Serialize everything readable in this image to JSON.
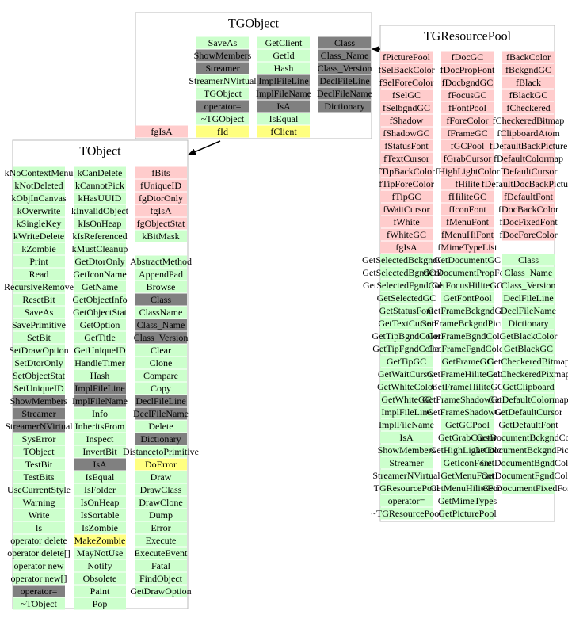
{
  "classes": [
    {
      "name": "TGObject",
      "columns": [
        [
          null,
          null,
          null,
          null,
          null,
          null,
          null,
          [
            "fgIsA",
            "pink"
          ]
        ],
        [
          [
            "SaveAs",
            "green"
          ],
          [
            "ShowMembers",
            "gray"
          ],
          [
            "Streamer",
            "gray"
          ],
          [
            "StreamerNVirtual",
            "green"
          ],
          [
            "TGObject",
            "green"
          ],
          [
            "operator=",
            "gray"
          ],
          [
            "~TGObject",
            "green"
          ],
          [
            "fId",
            "yellow"
          ]
        ],
        [
          [
            "GetClient",
            "green"
          ],
          [
            "GetId",
            "green"
          ],
          [
            "Hash",
            "green"
          ],
          [
            "ImplFileLine",
            "gray"
          ],
          [
            "ImplFileName",
            "gray"
          ],
          [
            "IsA",
            "gray"
          ],
          [
            "IsEqual",
            "green"
          ],
          [
            "fClient",
            "yellow"
          ]
        ],
        [
          [
            "Class",
            "gray"
          ],
          [
            "Class_Name",
            "gray"
          ],
          [
            "Class_Version",
            "gray"
          ],
          [
            "DeclFileLine",
            "gray"
          ],
          [
            "DeclFileName",
            "gray"
          ],
          [
            "Dictionary",
            "gray"
          ]
        ]
      ]
    },
    {
      "name": "TObject",
      "columns": [
        [
          [
            "kNoContextMenu",
            "green"
          ],
          [
            "kNotDeleted",
            "green"
          ],
          [
            "kObjInCanvas",
            "green"
          ],
          [
            "kOverwrite",
            "green"
          ],
          [
            "kSingleKey",
            "green"
          ],
          [
            "kWriteDelete",
            "green"
          ],
          [
            "kZombie",
            "green"
          ],
          [
            "Print",
            "green"
          ],
          [
            "Read",
            "green"
          ],
          [
            "RecursiveRemove",
            "green"
          ],
          [
            "ResetBit",
            "green"
          ],
          [
            "SaveAs",
            "green"
          ],
          [
            "SavePrimitive",
            "green"
          ],
          [
            "SetBit",
            "green"
          ],
          [
            "SetDrawOption",
            "green"
          ],
          [
            "SetDtorOnly",
            "green"
          ],
          [
            "SetObjectStat",
            "green"
          ],
          [
            "SetUniqueID",
            "green"
          ],
          [
            "ShowMembers",
            "gray"
          ],
          [
            "Streamer",
            "gray"
          ],
          [
            "StreamerNVirtual",
            "gray"
          ],
          [
            "SysError",
            "green"
          ],
          [
            "TObject",
            "green"
          ],
          [
            "TestBit",
            "green"
          ],
          [
            "TestBits",
            "green"
          ],
          [
            "UseCurrentStyle",
            "green"
          ],
          [
            "Warning",
            "green"
          ],
          [
            "Write",
            "green"
          ],
          [
            "ls",
            "green"
          ],
          [
            "operator delete",
            "green"
          ],
          [
            "operator delete[]",
            "green"
          ],
          [
            "operator new",
            "green"
          ],
          [
            "operator new[]",
            "green"
          ],
          [
            "operator=",
            "gray"
          ],
          [
            "~TObject",
            "green"
          ]
        ],
        [
          [
            "kCanDelete",
            "green"
          ],
          [
            "kCannotPick",
            "green"
          ],
          [
            "kHasUUID",
            "green"
          ],
          [
            "kInvalidObject",
            "green"
          ],
          [
            "kIsOnHeap",
            "green"
          ],
          [
            "kIsReferenced",
            "green"
          ],
          [
            "kMustCleanup",
            "green"
          ],
          [
            "GetDtorOnly",
            "green"
          ],
          [
            "GetIconName",
            "green"
          ],
          [
            "GetName",
            "green"
          ],
          [
            "GetObjectInfo",
            "green"
          ],
          [
            "GetObjectStat",
            "green"
          ],
          [
            "GetOption",
            "green"
          ],
          [
            "GetTitle",
            "green"
          ],
          [
            "GetUniqueID",
            "green"
          ],
          [
            "HandleTimer",
            "green"
          ],
          [
            "Hash",
            "green"
          ],
          [
            "ImplFileLine",
            "gray"
          ],
          [
            "ImplFileName",
            "gray"
          ],
          [
            "Info",
            "green"
          ],
          [
            "InheritsFrom",
            "green"
          ],
          [
            "Inspect",
            "green"
          ],
          [
            "InvertBit",
            "green"
          ],
          [
            "IsA",
            "gray"
          ],
          [
            "IsEqual",
            "green"
          ],
          [
            "IsFolder",
            "green"
          ],
          [
            "IsOnHeap",
            "green"
          ],
          [
            "IsSortable",
            "green"
          ],
          [
            "IsZombie",
            "green"
          ],
          [
            "MakeZombie",
            "yellow"
          ],
          [
            "MayNotUse",
            "green"
          ],
          [
            "Notify",
            "green"
          ],
          [
            "Obsolete",
            "green"
          ],
          [
            "Paint",
            "green"
          ],
          [
            "Pop",
            "green"
          ]
        ],
        [
          [
            "fBits",
            "pink"
          ],
          [
            "fUniqueID",
            "pink"
          ],
          [
            "fgDtorOnly",
            "pink"
          ],
          [
            "fgIsA",
            "pink"
          ],
          [
            "fgObjectStat",
            "pink"
          ],
          [
            "kBitMask",
            "green"
          ],
          null,
          [
            "AbstractMethod",
            "green"
          ],
          [
            "AppendPad",
            "green"
          ],
          [
            "Browse",
            "green"
          ],
          [
            "Class",
            "gray"
          ],
          [
            "ClassName",
            "green"
          ],
          [
            "Class_Name",
            "gray"
          ],
          [
            "Class_Version",
            "gray"
          ],
          [
            "Clear",
            "green"
          ],
          [
            "Clone",
            "green"
          ],
          [
            "Compare",
            "green"
          ],
          [
            "Copy",
            "green"
          ],
          [
            "DeclFileLine",
            "gray"
          ],
          [
            "DeclFileName",
            "gray"
          ],
          [
            "Delete",
            "green"
          ],
          [
            "Dictionary",
            "gray"
          ],
          [
            "DistancetoPrimitive",
            "green"
          ],
          [
            "DoError",
            "yellow"
          ],
          [
            "Draw",
            "green"
          ],
          [
            "DrawClass",
            "green"
          ],
          [
            "DrawClone",
            "green"
          ],
          [
            "Dump",
            "green"
          ],
          [
            "Error",
            "green"
          ],
          [
            "Execute",
            "green"
          ],
          [
            "ExecuteEvent",
            "green"
          ],
          [
            "Fatal",
            "green"
          ],
          [
            "FindObject",
            "green"
          ],
          [
            "GetDrawOption",
            "green"
          ]
        ]
      ]
    },
    {
      "name": "TGResourcePool",
      "columns": [
        [
          [
            "fPicturePool",
            "pink"
          ],
          [
            "fSelBackColor",
            "pink"
          ],
          [
            "fSelForeColor",
            "pink"
          ],
          [
            "fSelGC",
            "pink"
          ],
          [
            "fSelbgndGC",
            "pink"
          ],
          [
            "fShadow",
            "pink"
          ],
          [
            "fShadowGC",
            "pink"
          ],
          [
            "fStatusFont",
            "pink"
          ],
          [
            "fTextCursor",
            "pink"
          ],
          [
            "fTipBackColor",
            "pink"
          ],
          [
            "fTipForeColor",
            "pink"
          ],
          [
            "fTipGC",
            "pink"
          ],
          [
            "fWaitCursor",
            "pink"
          ],
          [
            "fWhite",
            "pink"
          ],
          [
            "fWhiteGC",
            "pink"
          ],
          [
            "fgIsA",
            "pink"
          ],
          [
            "GetSelectedBckgndGC",
            "green"
          ],
          [
            "GetSelectedBgndColor",
            "green"
          ],
          [
            "GetSelectedFgndColor",
            "green"
          ],
          [
            "GetSelectedGC",
            "green"
          ],
          [
            "GetStatusFont",
            "green"
          ],
          [
            "GetTextCursor",
            "green"
          ],
          [
            "GetTipBgndColor",
            "green"
          ],
          [
            "GetTipFgndColor",
            "green"
          ],
          [
            "GetTipGC",
            "green"
          ],
          [
            "GetWaitCursor",
            "green"
          ],
          [
            "GetWhiteColor",
            "green"
          ],
          [
            "GetWhiteGC",
            "green"
          ],
          [
            "ImplFileLine",
            "green"
          ],
          [
            "ImplFileName",
            "green"
          ],
          [
            "IsA",
            "green"
          ],
          [
            "ShowMembers",
            "green"
          ],
          [
            "Streamer",
            "green"
          ],
          [
            "StreamerNVirtual",
            "green"
          ],
          [
            "TGResourcePool",
            "green"
          ],
          [
            "operator=",
            "green"
          ],
          [
            "~TGResourcePool",
            "green"
          ]
        ],
        [
          [
            "fDocGC",
            "pink"
          ],
          [
            "fDocPropFont",
            "pink"
          ],
          [
            "fDocbgndGC",
            "pink"
          ],
          [
            "fFocusGC",
            "pink"
          ],
          [
            "fFontPool",
            "pink"
          ],
          [
            "fForeColor",
            "pink"
          ],
          [
            "fFrameGC",
            "pink"
          ],
          [
            "fGCPool",
            "pink"
          ],
          [
            "fGrabCursor",
            "pink"
          ],
          [
            "fHighLightColor",
            "pink"
          ],
          [
            "fHilite",
            "pink"
          ],
          [
            "fHiliteGC",
            "pink"
          ],
          [
            "fIconFont",
            "pink"
          ],
          [
            "fMenuFont",
            "pink"
          ],
          [
            "fMenuHiFont",
            "pink"
          ],
          [
            "fMimeTypeList",
            "pink"
          ],
          [
            "GetDocumentGC",
            "green"
          ],
          [
            "GetDocumentPropFont",
            "green"
          ],
          [
            "GetFocusHiliteGC",
            "green"
          ],
          [
            "GetFontPool",
            "green"
          ],
          [
            "GetFrameBckgndGC",
            "green"
          ],
          [
            "GetFrameBckgndPicture",
            "green"
          ],
          [
            "GetFrameBgndColor",
            "green"
          ],
          [
            "GetFrameFgndColor",
            "green"
          ],
          [
            "GetFrameGC",
            "green"
          ],
          [
            "GetFrameHiliteColor",
            "green"
          ],
          [
            "GetFrameHiliteGC",
            "green"
          ],
          [
            "GetFrameShadowColor",
            "green"
          ],
          [
            "GetFrameShadowGC",
            "green"
          ],
          [
            "GetGCPool",
            "green"
          ],
          [
            "GetGrabCursor",
            "green"
          ],
          [
            "GetHighLightColor",
            "green"
          ],
          [
            "GetIconFont",
            "green"
          ],
          [
            "GetMenuFont",
            "green"
          ],
          [
            "GetMenuHiliteFont",
            "green"
          ],
          [
            "GetMimeTypes",
            "green"
          ],
          [
            "GetPicturePool",
            "green"
          ]
        ],
        [
          [
            "fBackColor",
            "pink"
          ],
          [
            "fBckgndGC",
            "pink"
          ],
          [
            "fBlack",
            "pink"
          ],
          [
            "fBlackGC",
            "pink"
          ],
          [
            "fCheckered",
            "pink"
          ],
          [
            "fCheckeredBitmap",
            "pink"
          ],
          [
            "fClipboardAtom",
            "pink"
          ],
          [
            "fDefaultBackPicture",
            "pink"
          ],
          [
            "fDefaultColormap",
            "pink"
          ],
          [
            "fDefaultCursor",
            "pink"
          ],
          [
            "fDefaultDocBackPicture",
            "pink"
          ],
          [
            "fDefaultFont",
            "pink"
          ],
          [
            "fDocBackColor",
            "pink"
          ],
          [
            "fDocFixedFont",
            "pink"
          ],
          [
            "fDocForeColor",
            "pink"
          ],
          null,
          [
            "Class",
            "green"
          ],
          [
            "Class_Name",
            "green"
          ],
          [
            "Class_Version",
            "green"
          ],
          [
            "DeclFileLine",
            "green"
          ],
          [
            "DeclFileName",
            "green"
          ],
          [
            "Dictionary",
            "green"
          ],
          [
            "GetBlackColor",
            "green"
          ],
          [
            "GetBlackGC",
            "green"
          ],
          [
            "GetCheckeredBitmap",
            "green"
          ],
          [
            "GetCheckeredPixmap",
            "green"
          ],
          [
            "GetClipboard",
            "green"
          ],
          [
            "GetDefaultColormap",
            "green"
          ],
          [
            "GetDefaultCursor",
            "green"
          ],
          [
            "GetDefaultFont",
            "green"
          ],
          [
            "GetDocumentBckgndColor",
            "green"
          ],
          [
            "GetDocumentBckgndPicture",
            "green"
          ],
          [
            "GetDocumentBgndColor",
            "green"
          ],
          [
            "GetDocumentFgndColor",
            "green"
          ],
          [
            "GetDocumentFixedFont",
            "green"
          ]
        ]
      ]
    }
  ]
}
